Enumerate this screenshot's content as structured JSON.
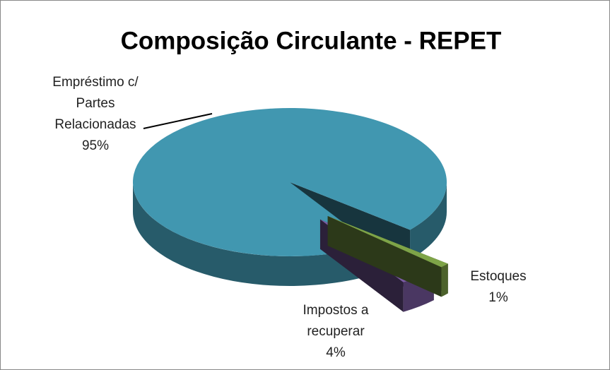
{
  "chart_data": {
    "type": "pie",
    "title": "Composição Circulante - REPET",
    "categories": [
      "Empréstimo c/ Partes Relacionadas",
      "Impostos a recuperar",
      "Estoques"
    ],
    "values": [
      95,
      4,
      1
    ],
    "value_labels": [
      "95%",
      "4%",
      "1%"
    ],
    "colors": [
      "#4197b0",
      "#7b5ca3",
      "#7ea448"
    ]
  }
}
